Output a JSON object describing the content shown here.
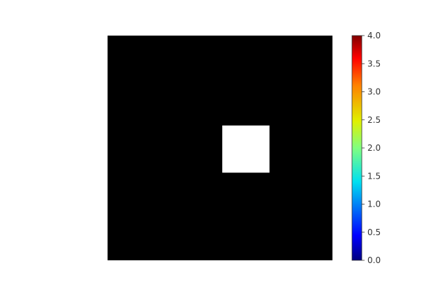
{
  "chart_data": {
    "type": "heatmap",
    "grid": false,
    "image": {
      "background_color": "#000000",
      "highlight_color": "#ffffff",
      "highlight_region_fraction": {
        "x0": 0.51,
        "y0": 0.4,
        "x1": 0.72,
        "y1": 0.61
      }
    },
    "colorbar": {
      "colormap": "jet",
      "range": [
        0.0,
        4.0
      ],
      "position": "right",
      "ticks": [
        "0.0",
        "0.5",
        "1.0",
        "1.5",
        "2.0",
        "2.5",
        "3.0",
        "3.5",
        "4.0"
      ]
    }
  }
}
